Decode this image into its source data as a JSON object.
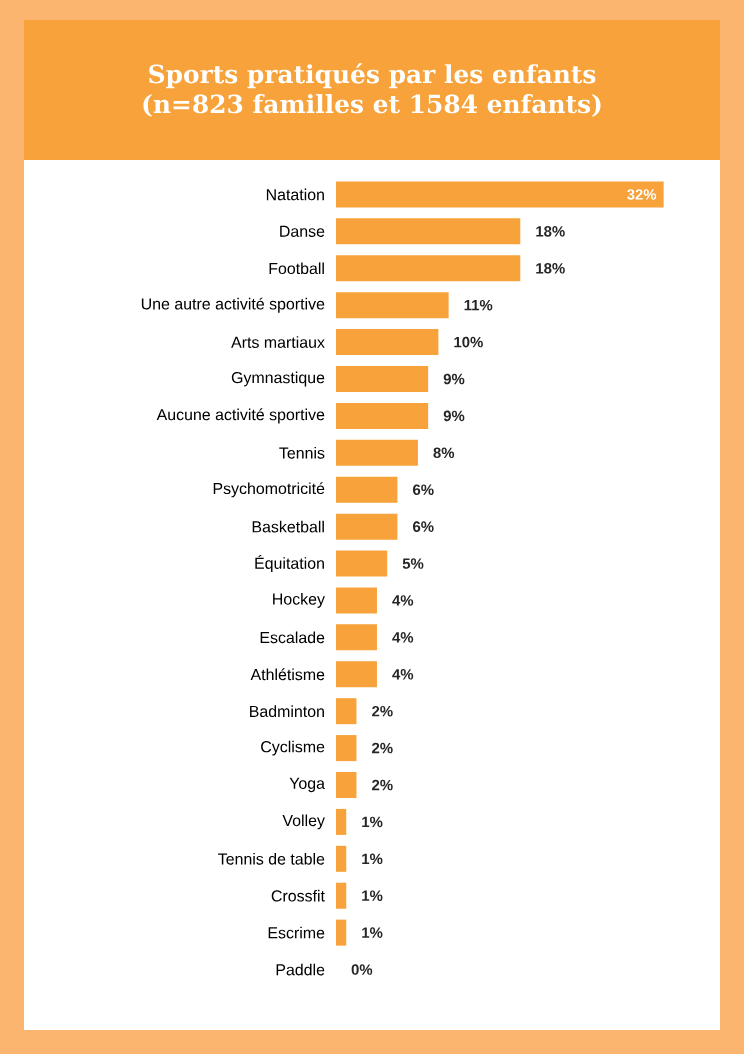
{
  "chart_data": {
    "type": "bar",
    "orientation": "horizontal",
    "title": "Sports pratiqués par les enfants",
    "subtitle": "(n=823 familles et 1584 enfants)",
    "color": "#f7a23a",
    "categories": [
      "Natation",
      "Danse",
      "Football",
      "Une autre activité sportive",
      "Arts martiaux",
      "Gymnastique",
      "Aucune activité sportive",
      "Tennis",
      "Psychomotricité",
      "Basketball",
      "Équitation",
      "Hockey",
      "Escalade",
      "Athlétisme",
      "Badminton",
      "Cyclisme",
      "Yoga",
      "Volley",
      "Tennis de table",
      "Crossfit",
      "Escrime",
      "Paddle"
    ],
    "values": [
      32,
      18,
      18,
      11,
      10,
      9,
      9,
      8,
      6,
      6,
      5,
      4,
      4,
      4,
      2,
      2,
      2,
      1,
      1,
      1,
      1,
      0
    ],
    "value_labels": [
      "32%",
      "18%",
      "18%",
      "11%",
      "10%",
      "9%",
      "9%",
      "8%",
      "6%",
      "6%",
      "5%",
      "4%",
      "4%",
      "4%",
      "2%",
      "2%",
      "2%",
      "1%",
      "1%",
      "1%",
      "1%",
      "0%"
    ]
  }
}
